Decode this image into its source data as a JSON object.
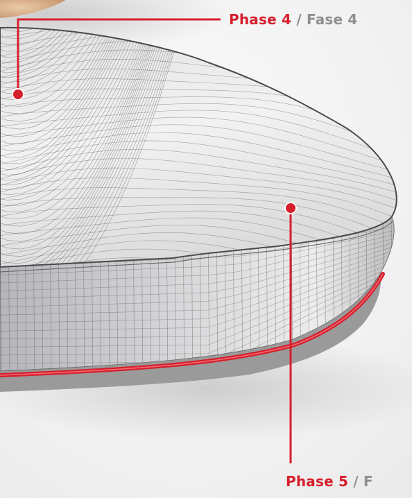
{
  "callouts": {
    "phase4": {
      "primary": "Phase 4",
      "separator": "/",
      "secondary": "Fase 4"
    },
    "phase5": {
      "primary": "Phase 5",
      "separator": "/",
      "secondary": "F"
    }
  },
  "colors": {
    "accent": "#d61f2c",
    "secondary_text": "#8f8f8f",
    "mesh_line": "#555555",
    "background": "#f4f4f4"
  }
}
